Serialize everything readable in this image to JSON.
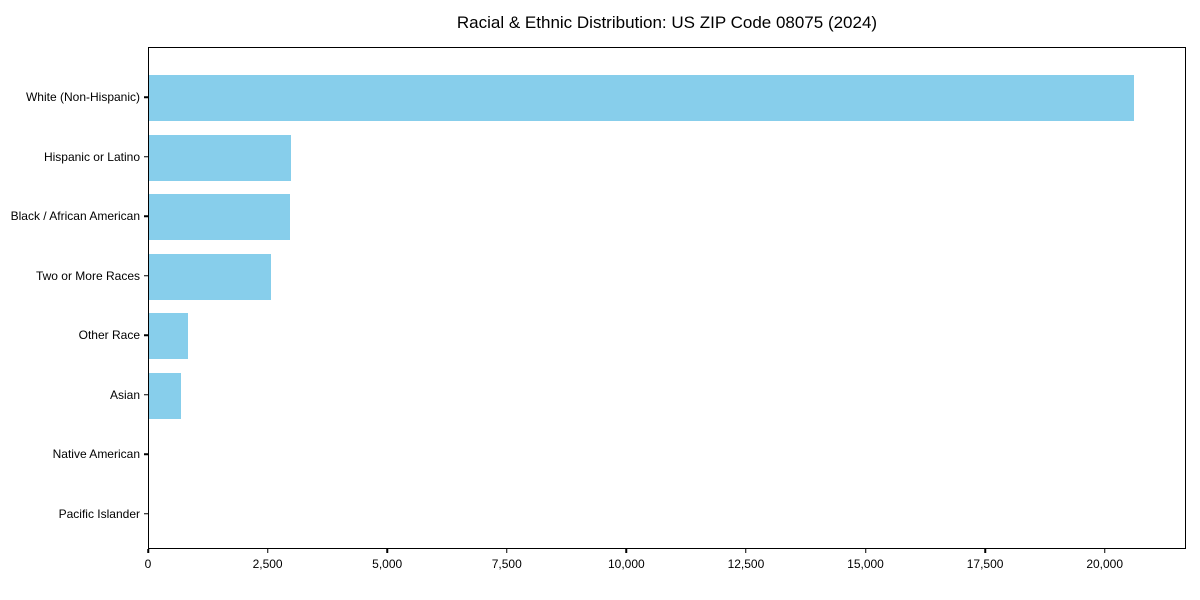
{
  "chart_data": {
    "type": "bar",
    "orientation": "horizontal",
    "title": "Racial & Ethnic Distribution: US ZIP Code 08075 (2024)",
    "categories": [
      "White (Non-Hispanic)",
      "Hispanic or Latino",
      "Black / African American",
      "Two or More Races",
      "Other Race",
      "Asian",
      "Native American",
      "Pacific Islander"
    ],
    "values": [
      20650,
      2970,
      2950,
      2550,
      810,
      670,
      0,
      0
    ],
    "xlabel": "",
    "ylabel": "",
    "xlim": [
      0,
      21700
    ],
    "x_ticks": [
      0,
      2500,
      5000,
      7500,
      10000,
      12500,
      15000,
      17500,
      20000
    ],
    "x_tick_labels": [
      "0",
      "2,500",
      "5,000",
      "7,500",
      "10,000",
      "12,500",
      "15,000",
      "17,500",
      "20,000"
    ],
    "bar_color": "#87ceeb",
    "axis_color": "#000000",
    "grid": false,
    "legend": null
  }
}
